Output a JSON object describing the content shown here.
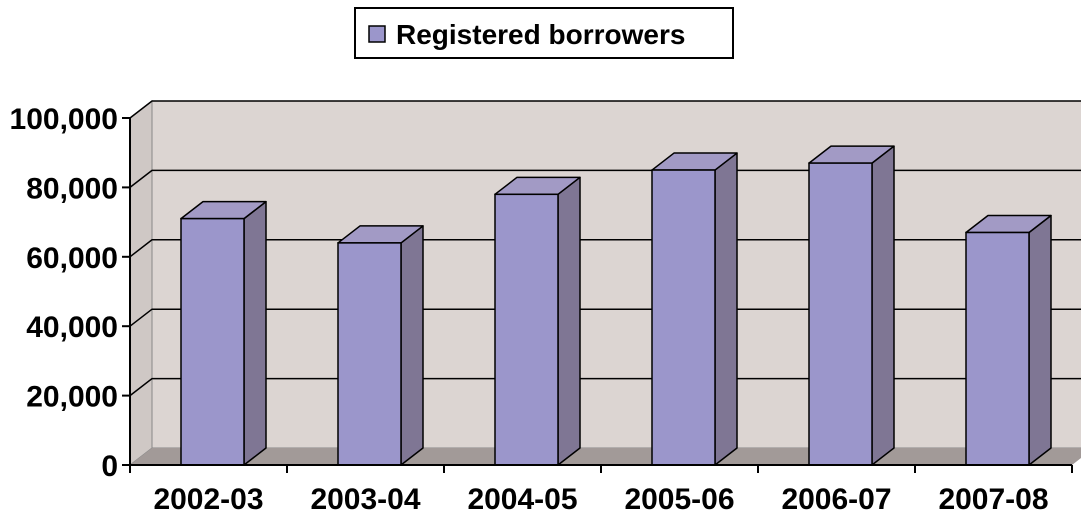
{
  "chart_data": {
    "type": "bar",
    "categories": [
      "2002-03",
      "2003-04",
      "2004-05",
      "2005-06",
      "2006-07",
      "2007-08"
    ],
    "series": [
      {
        "name": "Registered borrowers",
        "values": [
          71000,
          64000,
          78000,
          85000,
          87000,
          67000
        ]
      }
    ],
    "ylim": [
      0,
      100000
    ],
    "yticks": [
      0,
      20000,
      40000,
      60000,
      80000,
      100000
    ],
    "ytick_labels": [
      "0",
      "20,000",
      "40,000",
      "60,000",
      "80,000",
      "100,000"
    ],
    "xlabel": "",
    "ylabel": "",
    "grid": true,
    "legend_position": "top",
    "three_d": true
  },
  "colors": {
    "bar_front": "#9B96CB",
    "bar_side": "#7F7694",
    "bar_top": "#A29AC5",
    "back_wall": "#DCD5D2",
    "side_wall": "#CFC8C5",
    "floor": "#A29A98",
    "gridline": "#000000",
    "axis": "#000000",
    "text": "#000000"
  }
}
